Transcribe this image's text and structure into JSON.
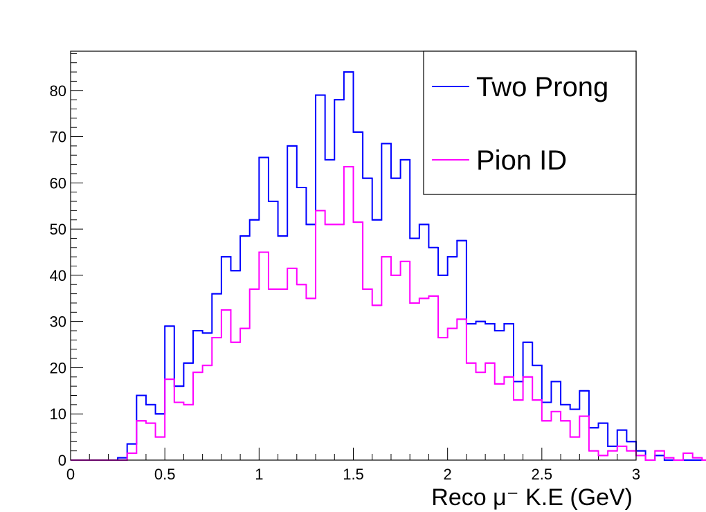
{
  "chart_data": {
    "type": "histogram-step",
    "xlabel": "Reco μ⁻ K.E (GeV)",
    "xlim": [
      0,
      3
    ],
    "ylim": [
      0,
      88.5
    ],
    "bin_width": 0.05,
    "grid": false,
    "legend_position": "top-right",
    "x_ticks": [
      0,
      0.5,
      1,
      1.5,
      2,
      2.5,
      3
    ],
    "x_tick_labels": [
      "0",
      "0.5",
      "1",
      "1.5",
      "2",
      "2.5",
      "3"
    ],
    "y_ticks": [
      0,
      10,
      20,
      30,
      40,
      50,
      60,
      70,
      80
    ],
    "y_tick_labels": [
      "0",
      "10",
      "20",
      "30",
      "40",
      "50",
      "60",
      "70",
      "80"
    ],
    "series": [
      {
        "name": "Two Prong",
        "color": "#0000ff",
        "values": [
          0,
          0,
          0,
          0,
          0,
          0.5,
          3.5,
          14,
          12,
          10,
          29,
          16,
          21,
          28,
          27.5,
          36,
          44,
          41,
          48.5,
          52,
          65.5,
          56,
          48.5,
          68,
          59,
          51,
          79,
          65,
          78,
          84,
          71,
          61,
          52,
          68.5,
          61,
          65,
          48,
          51,
          46,
          40,
          44,
          47.5,
          29.5,
          30,
          29.5,
          28,
          29.5,
          17,
          25.5,
          20.5,
          12.5,
          17,
          12,
          11,
          15,
          7,
          8,
          3,
          6.5,
          4,
          2,
          0,
          1,
          0,
          0,
          0,
          0,
          0,
          0,
          0
        ]
      },
      {
        "name": "Pion ID",
        "color": "#ff00ff",
        "values": [
          0,
          0,
          0,
          0,
          0,
          0,
          1.5,
          8.5,
          8,
          5,
          17.5,
          12.5,
          12,
          19,
          20.5,
          26.5,
          32.5,
          25.5,
          28.5,
          37,
          45,
          37,
          37,
          41.5,
          38,
          35,
          54,
          51,
          51,
          63.5,
          51.5,
          37,
          33.5,
          44,
          40,
          43,
          34,
          35,
          35.5,
          26.5,
          28.5,
          30.5,
          21,
          19,
          21,
          16.5,
          18,
          13,
          18,
          13,
          8.5,
          10.5,
          8.5,
          5,
          9.5,
          2,
          1,
          2,
          3,
          2,
          1,
          0,
          2,
          0.5,
          0,
          1.5,
          0.5,
          0,
          1,
          0
        ]
      }
    ]
  }
}
